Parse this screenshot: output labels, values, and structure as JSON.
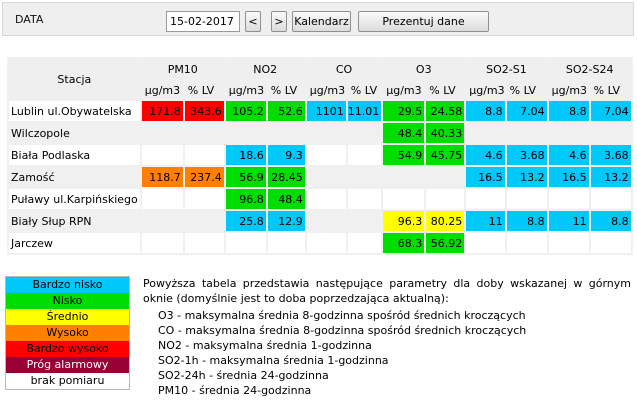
{
  "header": {
    "label": "DATA",
    "date_value": "15-02-2017",
    "prev_label": "<",
    "next_label": ">",
    "calendar_label": "Kalendarz",
    "show_label": "Prezentuj dane"
  },
  "table": {
    "station_header": "Stacja",
    "pollutants": [
      "PM10",
      "NO2",
      "CO",
      "O3",
      "SO2-S1",
      "SO2-S24"
    ],
    "units": [
      "µg/m3",
      "% LV"
    ],
    "rows": [
      {
        "name": "Lublin ul.Obywatelska",
        "cells": [
          {
            "v": "171.8",
            "c": "bw"
          },
          {
            "v": "343.6",
            "c": "bw"
          },
          {
            "v": "105.2",
            "c": "n"
          },
          {
            "v": "52.6",
            "c": "n"
          },
          {
            "v": "1101",
            "c": "bn"
          },
          {
            "v": "11.01",
            "c": "bn"
          },
          {
            "v": "29.5",
            "c": "n"
          },
          {
            "v": "24.58",
            "c": "n"
          },
          {
            "v": "8.8",
            "c": "bn"
          },
          {
            "v": "7.04",
            "c": "bn"
          },
          {
            "v": "8.8",
            "c": "bn"
          },
          {
            "v": "7.04",
            "c": "bn"
          }
        ]
      },
      {
        "name": "Wilczopole",
        "cells": [
          {
            "v": "",
            "c": ""
          },
          {
            "v": "",
            "c": ""
          },
          {
            "v": "",
            "c": ""
          },
          {
            "v": "",
            "c": ""
          },
          {
            "v": "",
            "c": ""
          },
          {
            "v": "",
            "c": ""
          },
          {
            "v": "48.4",
            "c": "n"
          },
          {
            "v": "40.33",
            "c": "n"
          },
          {
            "v": "",
            "c": ""
          },
          {
            "v": "",
            "c": ""
          },
          {
            "v": "",
            "c": ""
          },
          {
            "v": "",
            "c": ""
          }
        ]
      },
      {
        "name": "Biała Podlaska",
        "cells": [
          {
            "v": "",
            "c": ""
          },
          {
            "v": "",
            "c": ""
          },
          {
            "v": "18.6",
            "c": "bn"
          },
          {
            "v": "9.3",
            "c": "bn"
          },
          {
            "v": "",
            "c": ""
          },
          {
            "v": "",
            "c": ""
          },
          {
            "v": "54.9",
            "c": "n"
          },
          {
            "v": "45.75",
            "c": "n"
          },
          {
            "v": "4.6",
            "c": "bn"
          },
          {
            "v": "3.68",
            "c": "bn"
          },
          {
            "v": "4.6",
            "c": "bn"
          },
          {
            "v": "3.68",
            "c": "bn"
          }
        ]
      },
      {
        "name": "Zamość",
        "cells": [
          {
            "v": "118.7",
            "c": "w"
          },
          {
            "v": "237.4",
            "c": "w"
          },
          {
            "v": "56.9",
            "c": "n"
          },
          {
            "v": "28.45",
            "c": "n"
          },
          {
            "v": "",
            "c": ""
          },
          {
            "v": "",
            "c": ""
          },
          {
            "v": "",
            "c": ""
          },
          {
            "v": "",
            "c": ""
          },
          {
            "v": "16.5",
            "c": "bn"
          },
          {
            "v": "13.2",
            "c": "bn"
          },
          {
            "v": "16.5",
            "c": "bn"
          },
          {
            "v": "13.2",
            "c": "bn"
          }
        ]
      },
      {
        "name": "Puławy ul.Karpińskiego",
        "cells": [
          {
            "v": "",
            "c": ""
          },
          {
            "v": "",
            "c": ""
          },
          {
            "v": "96.8",
            "c": "n"
          },
          {
            "v": "48.4",
            "c": "n"
          },
          {
            "v": "",
            "c": ""
          },
          {
            "v": "",
            "c": ""
          },
          {
            "v": "",
            "c": ""
          },
          {
            "v": "",
            "c": ""
          },
          {
            "v": "",
            "c": ""
          },
          {
            "v": "",
            "c": ""
          },
          {
            "v": "",
            "c": ""
          },
          {
            "v": "",
            "c": ""
          }
        ]
      },
      {
        "name": "Biały Słup RPN",
        "cells": [
          {
            "v": "",
            "c": ""
          },
          {
            "v": "",
            "c": ""
          },
          {
            "v": "25.8",
            "c": "bn"
          },
          {
            "v": "12.9",
            "c": "bn"
          },
          {
            "v": "",
            "c": ""
          },
          {
            "v": "",
            "c": ""
          },
          {
            "v": "96.3",
            "c": "s"
          },
          {
            "v": "80.25",
            "c": "s"
          },
          {
            "v": "11",
            "c": "bn"
          },
          {
            "v": "8.8",
            "c": "bn"
          },
          {
            "v": "11",
            "c": "bn"
          },
          {
            "v": "8.8",
            "c": "bn"
          }
        ]
      },
      {
        "name": "Jarczew",
        "cells": [
          {
            "v": "",
            "c": ""
          },
          {
            "v": "",
            "c": ""
          },
          {
            "v": "",
            "c": ""
          },
          {
            "v": "",
            "c": ""
          },
          {
            "v": "",
            "c": ""
          },
          {
            "v": "",
            "c": ""
          },
          {
            "v": "68.3",
            "c": "n"
          },
          {
            "v": "56.92",
            "c": "n"
          },
          {
            "v": "",
            "c": ""
          },
          {
            "v": "",
            "c": ""
          },
          {
            "v": "",
            "c": ""
          },
          {
            "v": "",
            "c": ""
          }
        ]
      }
    ]
  },
  "legend": [
    {
      "label": "Bardzo nisko",
      "bg": "#00c8f8",
      "fg": "#000000"
    },
    {
      "label": "Nisko",
      "bg": "#00dd00",
      "fg": "#000000"
    },
    {
      "label": "Średnio",
      "bg": "#ffff00",
      "fg": "#000000"
    },
    {
      "label": "Wysoko",
      "bg": "#ff8000",
      "fg": "#000000"
    },
    {
      "label": "Bardzo wysoko",
      "bg": "#ff0000",
      "fg": "#000000"
    },
    {
      "label": "Próg alarmowy",
      "bg": "#990033",
      "fg": "#ffffff"
    },
    {
      "label": "brak pomiaru",
      "bg": "#ffffff",
      "fg": "#000000"
    }
  ],
  "description": {
    "intro": "Powyższa tabela przedstawia następujące parametry dla doby wskazanej w górnym oknie (domyślnie jest to doba poprzedzająca aktualną):",
    "items": [
      "O3 - maksymalna średnia 8-godzinna spośród średnich kroczących",
      "CO - maksymalna średnia 8-godzinna spośród średnich kroczących",
      "NO2 - maksymalna średnia 1-godzinna",
      "SO2-1h - maksymalna średnia 1-godzinna",
      "SO2-24h - średnia 24-godzinna",
      "PM10 - średnia 24-godzinna"
    ]
  }
}
